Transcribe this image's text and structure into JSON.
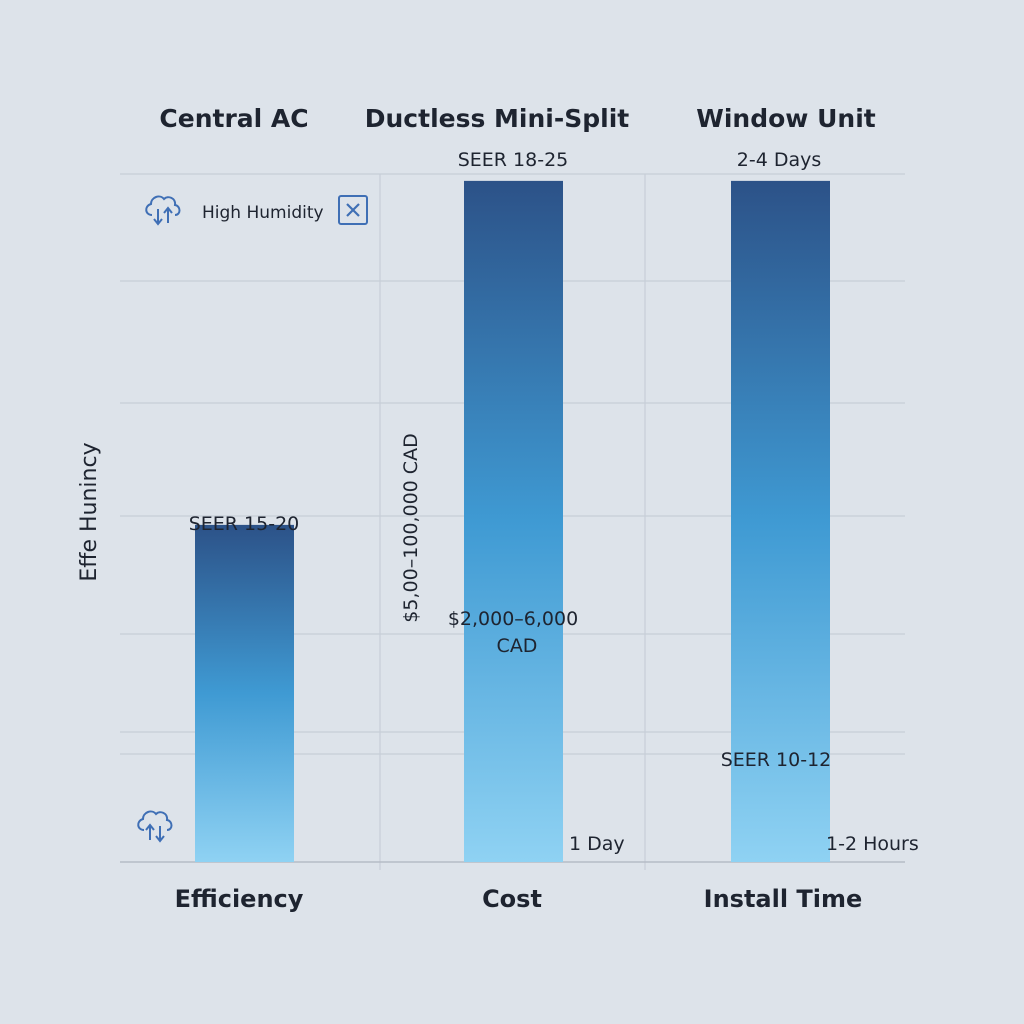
{
  "chart_data": {
    "type": "bar",
    "ylabel": "Effe Hunincy",
    "columns": [
      "Central AC",
      "Ductless Mini-Split",
      "Window Unit"
    ],
    "categories": [
      "Efficiency",
      "Cost",
      "Install Time"
    ],
    "values": [
      0.49,
      0.99,
      0.99
    ],
    "ylim": [
      0,
      1
    ],
    "grid": true,
    "bar_color_top": "#2c5288",
    "bar_color_mid": "#3f9ad3",
    "bar_color_bottom": "#8fd2f3",
    "top_labels": [
      "SEER 15-20",
      "SEER 18-25",
      "2-4 Days"
    ],
    "inner_labels": [
      "",
      "$2,000–6,000 CAD",
      "SEER 10-12"
    ],
    "bottom_labels": [
      "",
      "1 Day",
      "1-2 Hours"
    ],
    "rotated_label": "$5,00–100,000 CAD"
  },
  "legend": {
    "icon": "cloud-download-icon",
    "text": "High Humidity",
    "close_icon": "close-box-icon",
    "accent": "#3f6fb5"
  },
  "bottom_icon": "cloud-download-icon"
}
